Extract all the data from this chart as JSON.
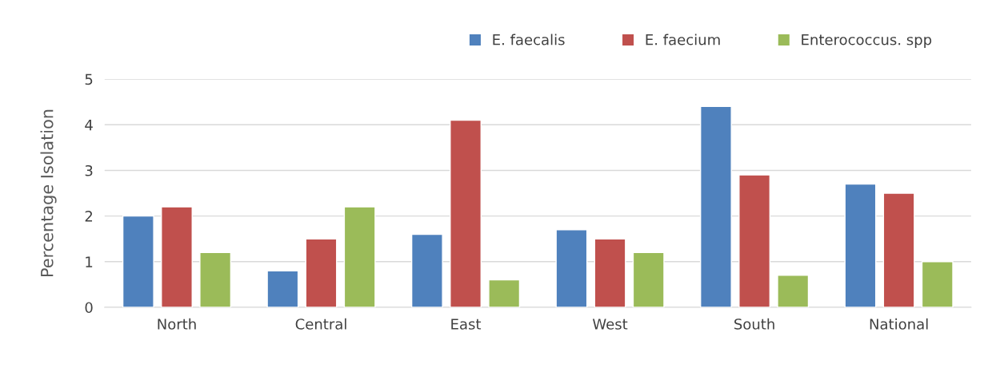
{
  "chart_data": {
    "type": "bar",
    "ylabel": "Percentage Isolation",
    "categories": [
      "North",
      "Central",
      "East",
      "West",
      "South",
      "National"
    ],
    "series": [
      {
        "name": "E. faecalis",
        "color": "#4f81bd",
        "values": [
          2.0,
          0.8,
          1.6,
          1.7,
          4.4,
          2.7
        ]
      },
      {
        "name": "E. faecium",
        "color": "#c0504d",
        "values": [
          2.2,
          1.5,
          4.1,
          1.5,
          2.9,
          2.5
        ]
      },
      {
        "name": "Enterococcus. spp",
        "color": "#9bbb59",
        "values": [
          1.2,
          2.2,
          0.6,
          1.2,
          0.7,
          1.0
        ]
      }
    ],
    "ylim": [
      0,
      5
    ],
    "yticks": [
      0,
      1,
      2,
      3,
      4,
      5
    ],
    "grid": "y",
    "legend": "top right"
  }
}
